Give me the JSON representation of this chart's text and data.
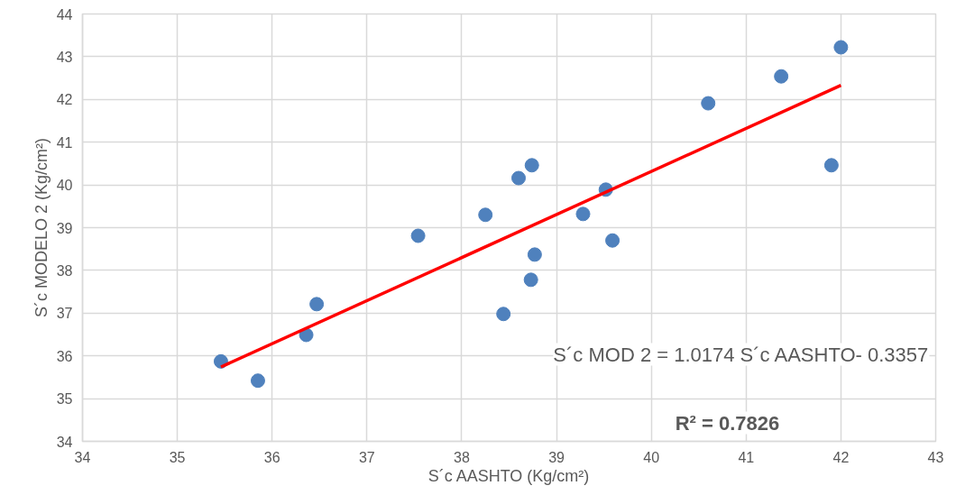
{
  "chart_data": {
    "type": "scatter",
    "xlabel": "S´c AASHTO (Kg/cm²)",
    "ylabel": "S´c MODELO 2 (Kg/cm²)",
    "xlim": [
      34,
      43
    ],
    "ylim": [
      34,
      44
    ],
    "xticks": [
      34,
      35,
      36,
      37,
      38,
      39,
      40,
      41,
      42,
      43
    ],
    "yticks": [
      34,
      35,
      36,
      37,
      38,
      39,
      40,
      41,
      42,
      43,
      44
    ],
    "grid": true,
    "marker": "circle",
    "series": [
      {
        "color": "#4f81bd",
        "x": [
          35.46,
          35.85,
          36.36,
          36.47,
          37.54,
          38.25,
          38.44,
          38.6,
          38.74,
          38.73,
          38.77,
          39.28,
          39.52,
          39.59,
          40.6,
          41.37,
          41.9,
          42.0
        ],
        "values": [
          35.87,
          35.42,
          36.49,
          37.21,
          38.81,
          39.3,
          36.98,
          40.16,
          40.46,
          37.78,
          38.37,
          39.32,
          39.89,
          38.7,
          41.91,
          42.54,
          40.46,
          43.22
        ]
      },
      {
        "type": "line",
        "marker": "none",
        "color": "#ff0000",
        "x": [
          35.46,
          42.0
        ],
        "values": [
          35.74,
          42.33
        ]
      }
    ],
    "annotations": [
      "S´c MOD 2 = 1.0174 S´c AASHTO- 0.3357",
      "R² = 0.7826"
    ]
  }
}
